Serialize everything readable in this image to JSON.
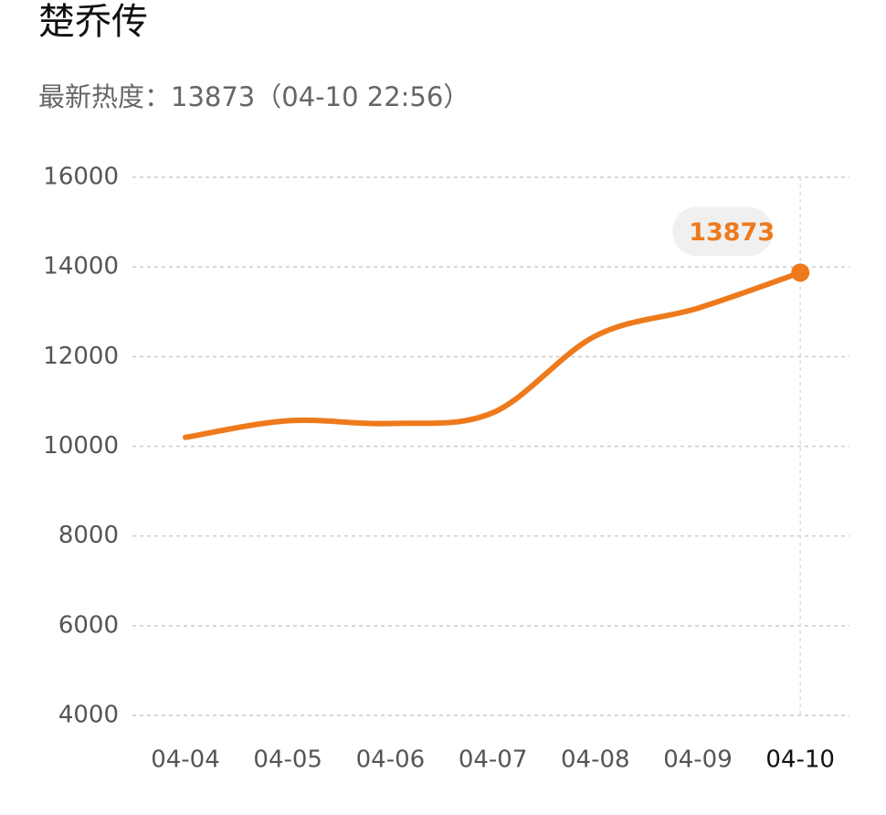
{
  "chart_data": {
    "type": "line",
    "title": "楚乔传",
    "subtitle": "最新热度：13873（04-10 22:56）",
    "categories": [
      "04-04",
      "04-05",
      "04-06",
      "04-07",
      "04-08",
      "04-09",
      "04-10"
    ],
    "series": [
      {
        "name": "热度",
        "color": "#ee7a1c",
        "values": [
          10200,
          10570,
          10510,
          10750,
          12460,
          13080,
          13873
        ]
      }
    ],
    "ylim": [
      4000,
      16000
    ],
    "yticks": [
      4000,
      6000,
      8000,
      10000,
      12000,
      14000,
      16000
    ],
    "grid": true
  }
}
